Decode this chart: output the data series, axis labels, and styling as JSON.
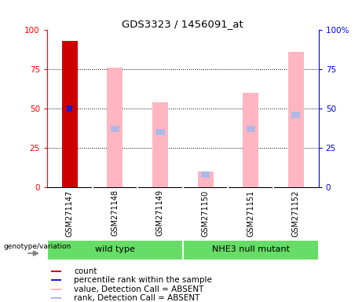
{
  "title": "GDS3323 / 1456091_at",
  "samples": [
    "GSM271147",
    "GSM271148",
    "GSM271149",
    "GSM271150",
    "GSM271151",
    "GSM271152"
  ],
  "value_bars": [
    93,
    76,
    54,
    10,
    60,
    86
  ],
  "rank_markers": [
    50,
    37,
    35,
    8,
    37,
    46
  ],
  "count_bar_index": 0,
  "percentile_marker_val": 50,
  "pink": "#ffb6c1",
  "red": "#cc0000",
  "blue": "#1c1ccc",
  "lavender": "#b0b8e8",
  "gray": "#d0d0d0",
  "green": "#66dd66",
  "ymax": 100,
  "yticks": [
    0,
    25,
    50,
    75,
    100
  ],
  "grid_lines": [
    25,
    50,
    75
  ],
  "bar_width": 0.35,
  "groups": [
    {
      "label": "wild type",
      "start": 0,
      "end": 3
    },
    {
      "label": "NHE3 null mutant",
      "start": 3,
      "end": 6
    }
  ],
  "legend_items": [
    {
      "color": "#cc0000",
      "label": "count"
    },
    {
      "color": "#1c1ccc",
      "label": "percentile rank within the sample"
    },
    {
      "color": "#ffb6c1",
      "label": "value, Detection Call = ABSENT"
    },
    {
      "color": "#b0b8e8",
      "label": "rank, Detection Call = ABSENT"
    }
  ]
}
